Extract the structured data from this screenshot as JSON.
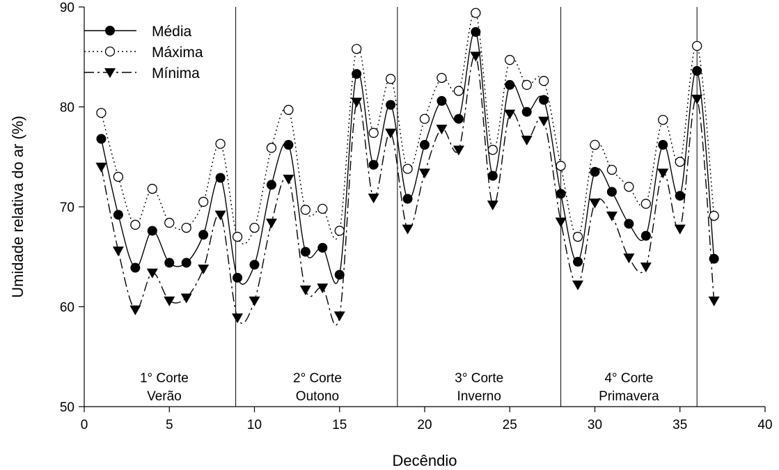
{
  "chart_data": {
    "type": "line",
    "xlabel": "Decêndio",
    "ylabel": "Umidade relativa do ar (%)",
    "xlim": [
      0,
      40
    ],
    "ylim": [
      50,
      90
    ],
    "xticks": [
      0,
      5,
      10,
      15,
      20,
      25,
      30,
      35,
      40
    ],
    "yticks": [
      50,
      60,
      70,
      80,
      90
    ],
    "grid": false,
    "legend_position": "top-left",
    "x": [
      1,
      2,
      3,
      4,
      5,
      6,
      7,
      8,
      9,
      10,
      11,
      12,
      13,
      14,
      15,
      16,
      17,
      18,
      19,
      20,
      21,
      22,
      23,
      24,
      25,
      26,
      27,
      28,
      29,
      30,
      31,
      32,
      33,
      34,
      35,
      36,
      37
    ],
    "series": [
      {
        "name": "Média",
        "marker": "filled-circle",
        "line": "solid",
        "values": [
          76.8,
          69.2,
          63.9,
          67.6,
          64.4,
          64.4,
          67.2,
          72.9,
          62.9,
          64.2,
          72.2,
          76.2,
          65.5,
          65.9,
          63.2,
          83.3,
          74.2,
          80.2,
          70.8,
          76.2,
          80.6,
          78.8,
          87.5,
          73.1,
          82.2,
          79.5,
          80.7,
          71.3,
          64.5,
          73.5,
          71.5,
          68.3,
          67.1,
          76.2,
          71.1,
          83.6,
          64.8
        ]
      },
      {
        "name": "Máxima",
        "marker": "open-circle",
        "line": "dotted",
        "values": [
          79.4,
          73.0,
          68.2,
          71.8,
          68.4,
          67.9,
          70.5,
          76.3,
          67.0,
          67.9,
          75.9,
          79.7,
          69.7,
          69.8,
          67.6,
          85.8,
          77.4,
          82.8,
          73.8,
          78.8,
          82.9,
          81.6,
          89.4,
          75.7,
          84.7,
          82.2,
          82.6,
          74.1,
          67.0,
          76.2,
          73.7,
          72.0,
          70.3,
          78.7,
          74.5,
          86.1,
          69.1
        ]
      },
      {
        "name": "Mínima",
        "marker": "filled-triangle-down",
        "line": "dash-dot",
        "values": [
          74.0,
          65.6,
          59.7,
          63.4,
          60.6,
          60.9,
          63.8,
          69.2,
          58.9,
          60.6,
          68.4,
          72.8,
          61.7,
          61.9,
          59.1,
          80.5,
          70.9,
          77.4,
          67.8,
          73.4,
          77.8,
          75.7,
          85.1,
          70.2,
          79.3,
          76.7,
          78.6,
          68.5,
          62.2,
          70.4,
          69.1,
          64.9,
          64.0,
          73.4,
          67.8,
          80.8,
          60.6
        ]
      }
    ],
    "dividers": [
      8.9,
      18.4,
      28.0,
      36.0
    ],
    "regions": [
      {
        "line1": "1° Corte",
        "line2": "Verão",
        "x": 4.7
      },
      {
        "line1": "2° Corte",
        "line2": "Outono",
        "x": 13.7
      },
      {
        "line1": "3° Corte",
        "line2": "Inverno",
        "x": 23.2
      },
      {
        "line1": "4° Corte",
        "line2": "Primavera",
        "x": 32.0
      }
    ],
    "colors": {
      "line": "#000000",
      "background": "#ffffff"
    }
  }
}
